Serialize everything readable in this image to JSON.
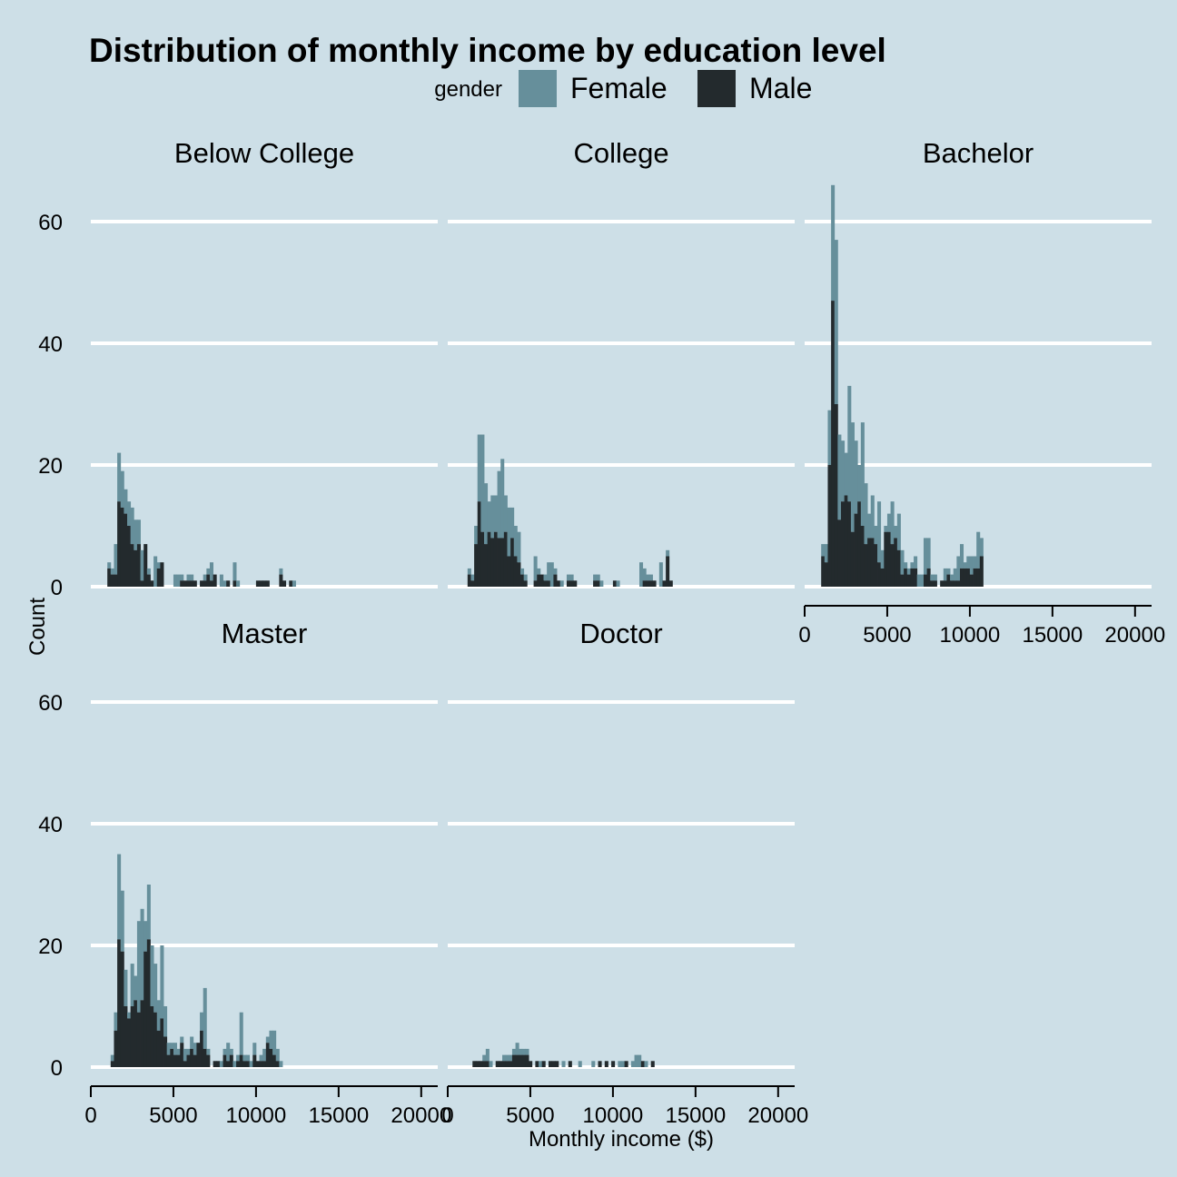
{
  "chart_data": {
    "type": "bar",
    "title": "Distribution of monthly income by education level",
    "xlabel": "Monthly income ($)",
    "ylabel": "Count",
    "xlim": [
      0,
      21000
    ],
    "ylim": [
      0,
      66
    ],
    "x_ticks": [
      0,
      5000,
      10000,
      15000,
      20000
    ],
    "y_ticks": [
      0,
      20,
      40,
      60
    ],
    "bin_width": 200,
    "stacking": "stacked (Male drawn over Female; bar top = total count)",
    "legend": {
      "title": "gender",
      "position": "top",
      "entries": [
        {
          "name": "Female",
          "color": "#668f9b"
        },
        {
          "name": "Male",
          "color": "#232a2d"
        }
      ]
    },
    "colors": {
      "background": "#cddfe7",
      "grid": "#ffffff",
      "female": "#668f9b",
      "male": "#232a2d"
    },
    "grid": "horizontal major only",
    "facets": [
      {
        "name": "Below College",
        "bins": [
          [
            1100,
            3,
            4
          ],
          [
            1300,
            2,
            3
          ],
          [
            1500,
            2,
            7
          ],
          [
            1700,
            14,
            22
          ],
          [
            1900,
            13,
            19
          ],
          [
            2100,
            12,
            16
          ],
          [
            2300,
            10,
            14
          ],
          [
            2500,
            7,
            13
          ],
          [
            2700,
            6,
            11
          ],
          [
            2900,
            7,
            11
          ],
          [
            3100,
            1,
            6
          ],
          [
            3300,
            7,
            7
          ],
          [
            3500,
            2,
            3
          ],
          [
            3700,
            1,
            1
          ],
          [
            3900,
            0,
            5
          ],
          [
            4100,
            3,
            4
          ],
          [
            4300,
            4,
            4
          ],
          [
            5100,
            0,
            2
          ],
          [
            5300,
            0,
            2
          ],
          [
            5500,
            1,
            2
          ],
          [
            5700,
            1,
            1
          ],
          [
            5900,
            1,
            2
          ],
          [
            6100,
            1,
            2
          ],
          [
            6300,
            1,
            1
          ],
          [
            6700,
            1,
            1
          ],
          [
            6900,
            1,
            2
          ],
          [
            7100,
            2,
            3
          ],
          [
            7300,
            1,
            4
          ],
          [
            7500,
            2,
            2
          ],
          [
            7900,
            0,
            2
          ],
          [
            8100,
            0,
            1
          ],
          [
            8300,
            1,
            1
          ],
          [
            8700,
            1,
            4
          ],
          [
            8900,
            0,
            1
          ],
          [
            10100,
            1,
            1
          ],
          [
            10300,
            1,
            1
          ],
          [
            10500,
            1,
            1
          ],
          [
            10700,
            1,
            1
          ],
          [
            11500,
            2,
            3
          ],
          [
            11700,
            1,
            1
          ],
          [
            12100,
            1,
            1
          ],
          [
            12300,
            0,
            1
          ]
        ]
      },
      {
        "name": "College",
        "bins": [
          [
            1300,
            2,
            3
          ],
          [
            1500,
            1,
            2
          ],
          [
            1700,
            7,
            10
          ],
          [
            1900,
            14,
            25
          ],
          [
            2100,
            9,
            25
          ],
          [
            2300,
            7,
            17
          ],
          [
            2500,
            9,
            14
          ],
          [
            2700,
            8,
            15
          ],
          [
            2900,
            9,
            15
          ],
          [
            3100,
            8,
            19
          ],
          [
            3300,
            8,
            21
          ],
          [
            3500,
            9,
            15
          ],
          [
            3700,
            5,
            13
          ],
          [
            3900,
            8,
            13
          ],
          [
            4100,
            5,
            10
          ],
          [
            4300,
            4,
            9
          ],
          [
            4500,
            2,
            3
          ],
          [
            4700,
            1,
            2
          ],
          [
            5300,
            1,
            5
          ],
          [
            5500,
            2,
            3
          ],
          [
            5700,
            2,
            2
          ],
          [
            5900,
            1,
            2
          ],
          [
            6100,
            1,
            4
          ],
          [
            6300,
            0,
            4
          ],
          [
            6500,
            2,
            3
          ],
          [
            6700,
            1,
            1
          ],
          [
            6900,
            0,
            1
          ],
          [
            7300,
            1,
            2
          ],
          [
            7500,
            1,
            2
          ],
          [
            7700,
            1,
            1
          ],
          [
            8900,
            1,
            2
          ],
          [
            9100,
            1,
            2
          ],
          [
            9300,
            0,
            1
          ],
          [
            10100,
            1,
            1
          ],
          [
            10300,
            0,
            1
          ],
          [
            11700,
            0,
            4
          ],
          [
            11900,
            1,
            3
          ],
          [
            12100,
            1,
            2
          ],
          [
            12300,
            1,
            2
          ],
          [
            12500,
            1,
            1
          ],
          [
            12900,
            0,
            4
          ],
          [
            13100,
            1,
            1
          ],
          [
            13300,
            5,
            6
          ],
          [
            13500,
            1,
            1
          ]
        ]
      },
      {
        "name": "Bachelor",
        "bins": [
          [
            1100,
            5,
            7
          ],
          [
            1300,
            4,
            7
          ],
          [
            1500,
            20,
            29
          ],
          [
            1700,
            47,
            66
          ],
          [
            1900,
            30,
            57
          ],
          [
            2100,
            11,
            25
          ],
          [
            2300,
            14,
            24
          ],
          [
            2500,
            15,
            22
          ],
          [
            2700,
            14,
            33
          ],
          [
            2900,
            9,
            27
          ],
          [
            3100,
            12,
            24
          ],
          [
            3300,
            14,
            20
          ],
          [
            3500,
            10,
            27
          ],
          [
            3700,
            7,
            17
          ],
          [
            3900,
            8,
            12
          ],
          [
            4100,
            8,
            15
          ],
          [
            4300,
            7,
            10
          ],
          [
            4500,
            4,
            14
          ],
          [
            4700,
            3,
            6
          ],
          [
            4900,
            9,
            10
          ],
          [
            5100,
            9,
            12
          ],
          [
            5300,
            7,
            14
          ],
          [
            5500,
            8,
            10
          ],
          [
            5700,
            6,
            12
          ],
          [
            5900,
            2,
            6
          ],
          [
            6100,
            3,
            4
          ],
          [
            6300,
            2,
            3
          ],
          [
            6500,
            3,
            4
          ],
          [
            6700,
            3,
            5
          ],
          [
            6900,
            0,
            2
          ],
          [
            7100,
            0,
            2
          ],
          [
            7300,
            2,
            8
          ],
          [
            7500,
            3,
            8
          ],
          [
            7700,
            1,
            2
          ],
          [
            7900,
            1,
            2
          ],
          [
            8300,
            1,
            1
          ],
          [
            8500,
            1,
            3
          ],
          [
            8700,
            2,
            3
          ],
          [
            8900,
            1,
            2
          ],
          [
            9100,
            1,
            3
          ],
          [
            9300,
            1,
            5
          ],
          [
            9500,
            3,
            7
          ],
          [
            9700,
            3,
            4
          ],
          [
            9900,
            3,
            5
          ],
          [
            10100,
            2,
            5
          ],
          [
            10300,
            3,
            5
          ],
          [
            10500,
            3,
            9
          ],
          [
            10700,
            5,
            8
          ]
        ]
      },
      {
        "name": "Master",
        "bins": [
          [
            1300,
            1,
            2
          ],
          [
            1500,
            6,
            9
          ],
          [
            1700,
            21,
            35
          ],
          [
            1900,
            19,
            29
          ],
          [
            2100,
            10,
            16
          ],
          [
            2300,
            8,
            9
          ],
          [
            2500,
            10,
            17
          ],
          [
            2700,
            11,
            15
          ],
          [
            2900,
            9,
            24
          ],
          [
            3100,
            11,
            26
          ],
          [
            3300,
            19,
            24
          ],
          [
            3500,
            21,
            30
          ],
          [
            3700,
            10,
            20
          ],
          [
            3900,
            9,
            17
          ],
          [
            4100,
            6,
            11
          ],
          [
            4300,
            8,
            20
          ],
          [
            4500,
            5,
            10
          ],
          [
            4700,
            2,
            4
          ],
          [
            4900,
            3,
            4
          ],
          [
            5100,
            2,
            4
          ],
          [
            5300,
            2,
            3
          ],
          [
            5500,
            4,
            5
          ],
          [
            5700,
            1,
            3
          ],
          [
            5900,
            2,
            3
          ],
          [
            6100,
            3,
            5
          ],
          [
            6300,
            2,
            4
          ],
          [
            6500,
            4,
            4
          ],
          [
            6700,
            6,
            9
          ],
          [
            6900,
            3,
            13
          ],
          [
            7100,
            2,
            3
          ],
          [
            7500,
            1,
            1
          ],
          [
            7700,
            1,
            1
          ],
          [
            7900,
            0,
            1
          ],
          [
            8100,
            2,
            3
          ],
          [
            8300,
            1,
            4
          ],
          [
            8500,
            2,
            3
          ],
          [
            8700,
            0,
            1
          ],
          [
            8900,
            1,
            2
          ],
          [
            9100,
            2,
            9
          ],
          [
            9300,
            1,
            2
          ],
          [
            9500,
            1,
            2
          ],
          [
            9700,
            0,
            1
          ],
          [
            9900,
            2,
            4
          ],
          [
            10100,
            1,
            1
          ],
          [
            10300,
            1,
            2
          ],
          [
            10500,
            1,
            3
          ],
          [
            10700,
            4,
            5
          ],
          [
            10900,
            3,
            6
          ],
          [
            11100,
            2,
            6
          ],
          [
            11300,
            1,
            3
          ],
          [
            11500,
            0,
            1
          ]
        ]
      },
      {
        "name": "Doctor",
        "bins": [
          [
            1600,
            1,
            1
          ],
          [
            1800,
            1,
            1
          ],
          [
            2000,
            1,
            1
          ],
          [
            2200,
            1,
            2
          ],
          [
            2400,
            1,
            3
          ],
          [
            2600,
            0,
            1
          ],
          [
            3000,
            1,
            1
          ],
          [
            3200,
            1,
            1
          ],
          [
            3400,
            1,
            2
          ],
          [
            3600,
            1,
            2
          ],
          [
            3800,
            1,
            2
          ],
          [
            4000,
            2,
            3
          ],
          [
            4200,
            2,
            4
          ],
          [
            4400,
            2,
            3
          ],
          [
            4600,
            2,
            3
          ],
          [
            4800,
            2,
            3
          ],
          [
            5000,
            1,
            1
          ],
          [
            5400,
            1,
            1
          ],
          [
            5600,
            0,
            1
          ],
          [
            5800,
            1,
            1
          ],
          [
            6200,
            1,
            1
          ],
          [
            6400,
            1,
            1
          ],
          [
            6600,
            1,
            1
          ],
          [
            7000,
            0,
            1
          ],
          [
            7400,
            1,
            1
          ],
          [
            8000,
            0,
            1
          ],
          [
            8800,
            0,
            1
          ],
          [
            9200,
            1,
            1
          ],
          [
            9600,
            1,
            1
          ],
          [
            10000,
            1,
            1
          ],
          [
            10400,
            0,
            1
          ],
          [
            10600,
            0,
            1
          ],
          [
            10800,
            1,
            1
          ],
          [
            11200,
            0,
            1
          ],
          [
            11400,
            0,
            2
          ],
          [
            11600,
            0,
            2
          ],
          [
            11800,
            1,
            1
          ],
          [
            12000,
            0,
            1
          ],
          [
            12400,
            1,
            1
          ]
        ]
      }
    ]
  }
}
